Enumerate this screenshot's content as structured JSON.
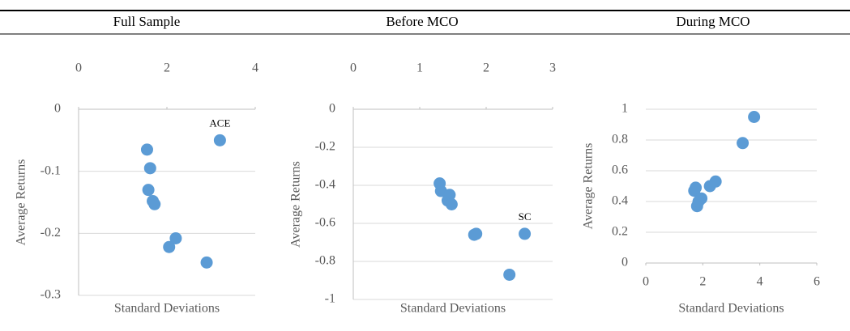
{
  "chart_data": [
    {
      "type": "scatter",
      "title": "Full Sample",
      "x_label": "Standard Deviations",
      "y_label": "Average Returns",
      "x_axis_side": "top",
      "color": "#5b9bd5",
      "grid": true,
      "xlim": [
        0,
        4
      ],
      "xticks": [
        0,
        2,
        4
      ],
      "ylim": [
        -0.3,
        0
      ],
      "yticks": [
        0,
        -0.1,
        -0.2,
        -0.3
      ],
      "series": [
        {
          "x": [
            1.55,
            1.62,
            1.58,
            1.68,
            1.72,
            2.2,
            2.05,
            2.9,
            3.2
          ],
          "values": [
            -0.065,
            -0.095,
            -0.13,
            -0.148,
            -0.153,
            -0.208,
            -0.222,
            -0.247,
            -0.05
          ],
          "point_labels": [
            null,
            null,
            null,
            null,
            null,
            null,
            null,
            null,
            "ACE"
          ]
        }
      ]
    },
    {
      "type": "scatter",
      "title": "Before MCO",
      "x_label": "Standard Deviations",
      "y_label": "Average Returns",
      "x_axis_side": "top",
      "color": "#5b9bd5",
      "grid": true,
      "xlim": [
        0,
        3
      ],
      "xticks": [
        0,
        1,
        2,
        3
      ],
      "ylim": [
        -1,
        0
      ],
      "yticks": [
        0,
        -0.2,
        -0.4,
        -0.6,
        -0.8,
        -1
      ],
      "series": [
        {
          "x": [
            1.3,
            1.32,
            1.45,
            1.42,
            1.48,
            1.85,
            1.82,
            2.58,
            2.35
          ],
          "values": [
            -0.39,
            -0.43,
            -0.45,
            -0.48,
            -0.5,
            -0.655,
            -0.66,
            -0.655,
            -0.87
          ],
          "point_labels": [
            null,
            null,
            null,
            null,
            null,
            null,
            null,
            "SC",
            null
          ]
        }
      ]
    },
    {
      "type": "scatter",
      "title": "During MCO",
      "x_label": "Standard Deviations",
      "y_label": "Average Returns",
      "x_axis_side": "bottom",
      "color": "#5b9bd5",
      "grid": true,
      "xlim": [
        0,
        6
      ],
      "xticks": [
        0,
        2,
        4,
        6
      ],
      "ylim": [
        0,
        1
      ],
      "yticks": [
        0,
        0.2,
        0.4,
        0.6,
        0.8,
        1
      ],
      "series": [
        {
          "x": [
            1.7,
            1.75,
            1.8,
            1.95,
            2.25,
            2.45,
            3.4,
            3.8,
            1.85
          ],
          "values": [
            0.47,
            0.49,
            0.37,
            0.42,
            0.5,
            0.53,
            0.78,
            0.95,
            0.4
          ],
          "point_labels": [
            null,
            null,
            null,
            null,
            null,
            null,
            null,
            null,
            null
          ]
        }
      ]
    }
  ]
}
